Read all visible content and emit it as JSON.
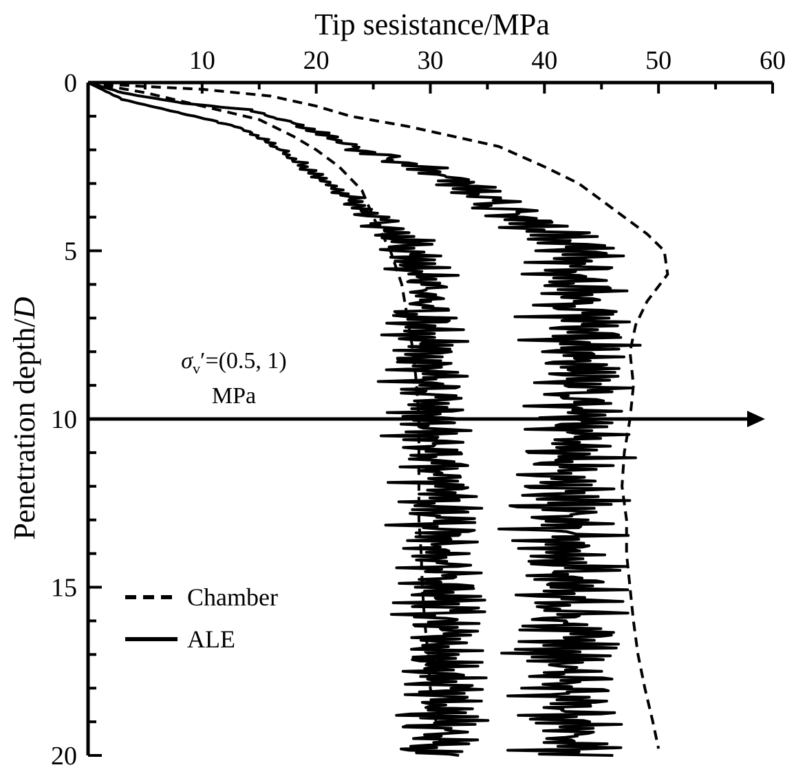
{
  "chart_data": {
    "type": "line",
    "title": "",
    "xlabel": "Tip sesistance/MPa",
    "ylabel_text": "Penetration depth/",
    "ylabel_italic": "D",
    "xlim": [
      0,
      60
    ],
    "ylim": [
      0,
      20
    ],
    "y_inverted": true,
    "x_axis_position": "top",
    "x_ticks": [
      "10",
      "20",
      "30",
      "40",
      "50",
      "60"
    ],
    "y_ticks": [
      "0",
      "5",
      "10",
      "15",
      "20"
    ],
    "annotation": {
      "sigma": "σ",
      "sub": "v",
      "rest": "′=(0.5, 1)",
      "line2": "MPa",
      "arrow_depth": 10
    },
    "legend_position": "bottom-left",
    "series": [
      {
        "name": "Chamber",
        "style": "dashed",
        "sigma": "0.5",
        "points": [
          [
            0,
            0
          ],
          [
            4,
            0.1
          ],
          [
            10,
            0.2
          ],
          [
            16,
            0.4
          ],
          [
            20,
            0.7
          ],
          [
            23,
            1.0
          ],
          [
            28,
            1.3
          ],
          [
            32,
            1.6
          ],
          [
            36,
            1.9
          ],
          [
            40,
            2.5
          ],
          [
            43,
            3.0
          ],
          [
            45,
            3.5
          ],
          [
            47,
            4.0
          ],
          [
            49,
            4.5
          ],
          [
            50.5,
            5.0
          ],
          [
            50.8,
            5.7
          ],
          [
            49,
            6.5
          ],
          [
            48,
            7.2
          ],
          [
            47.5,
            8.0
          ],
          [
            47.8,
            9.0
          ],
          [
            47.5,
            10.0
          ],
          [
            47,
            11.0
          ],
          [
            46.8,
            12.0
          ],
          [
            47.2,
            13.0
          ],
          [
            47.2,
            14.0
          ],
          [
            47.5,
            15.0
          ],
          [
            47.8,
            16.0
          ],
          [
            48.2,
            17.0
          ],
          [
            48.8,
            18.0
          ],
          [
            49.5,
            19.0
          ],
          [
            50,
            19.8
          ]
        ]
      },
      {
        "name": "",
        "style": "dashed",
        "sigma": "1",
        "points": [
          [
            0,
            0
          ],
          [
            5,
            0.3
          ],
          [
            10,
            0.7
          ],
          [
            15,
            1.1
          ],
          [
            18,
            1.6
          ],
          [
            20,
            2.0
          ],
          [
            22,
            2.5
          ],
          [
            24,
            3.2
          ],
          [
            25,
            4.0
          ],
          [
            26.5,
            5.0
          ],
          [
            27.5,
            6.0
          ],
          [
            28,
            7.0
          ],
          [
            28.5,
            8.0
          ],
          [
            28.8,
            9.0
          ],
          [
            29,
            10.0
          ],
          [
            29,
            11.0
          ],
          [
            29,
            12.0
          ],
          [
            29,
            13.0
          ],
          [
            29.2,
            14.0
          ],
          [
            29.3,
            15.0
          ],
          [
            29.5,
            16.0
          ],
          [
            29.8,
            17.0
          ],
          [
            30,
            18.0
          ],
          [
            30.5,
            19.0
          ],
          [
            31,
            19.8
          ]
        ]
      },
      {
        "name": "ALE",
        "style": "solid",
        "sigma": "0.5",
        "base": [
          [
            0,
            0
          ],
          [
            3,
            0.3
          ],
          [
            8,
            0.6
          ],
          [
            14,
            0.8
          ],
          [
            18,
            1.2
          ],
          [
            21,
            1.6
          ],
          [
            24,
            2.0
          ],
          [
            29,
            2.5
          ],
          [
            33,
            3.0
          ],
          [
            35,
            3.5
          ],
          [
            38,
            4.0
          ],
          [
            41,
            4.5
          ],
          [
            43,
            5.0
          ],
          [
            43,
            5.5
          ],
          [
            43,
            6.0
          ],
          [
            43,
            6.5
          ],
          [
            43,
            7.0
          ],
          [
            43,
            8.0
          ],
          [
            43,
            9.0
          ],
          [
            43,
            10.0
          ],
          [
            43,
            10.5
          ],
          [
            42,
            12.0
          ],
          [
            41.5,
            13.5
          ],
          [
            42,
            15.0
          ],
          [
            42,
            17.0
          ],
          [
            42,
            19.0
          ],
          [
            42,
            20.0
          ]
        ],
        "amp": [
          [
            0,
            0
          ],
          [
            0.5,
            0.2
          ],
          [
            1.0,
            0.5
          ],
          [
            2.0,
            1.5
          ],
          [
            3.0,
            2.5
          ],
          [
            4.0,
            4.0
          ],
          [
            5.0,
            4.5
          ],
          [
            10.0,
            4.8
          ],
          [
            15.0,
            5.0
          ],
          [
            20.0,
            5.0
          ]
        ]
      },
      {
        "name": "",
        "style": "solid",
        "sigma": "1",
        "base": [
          [
            0,
            0
          ],
          [
            3,
            0.5
          ],
          [
            8,
            0.9
          ],
          [
            13,
            1.3
          ],
          [
            16,
            1.8
          ],
          [
            19,
            2.5
          ],
          [
            21,
            3.0
          ],
          [
            23,
            3.5
          ],
          [
            25,
            4.0
          ],
          [
            27,
            4.5
          ],
          [
            28,
            5.0
          ],
          [
            29,
            5.5
          ],
          [
            29.5,
            6.5
          ],
          [
            29.5,
            7.5
          ],
          [
            29.5,
            8.5
          ],
          [
            30,
            9.5
          ],
          [
            30,
            10.0
          ],
          [
            30.5,
            11.0
          ],
          [
            31,
            12.0
          ],
          [
            31,
            13.5
          ],
          [
            31,
            15.0
          ],
          [
            31,
            17.0
          ],
          [
            31,
            19.0
          ],
          [
            31,
            20.0
          ]
        ],
        "amp": [
          [
            0,
            0
          ],
          [
            1.0,
            0.2
          ],
          [
            2.0,
            0.6
          ],
          [
            3.0,
            1.0
          ],
          [
            4.0,
            2.0
          ],
          [
            5.0,
            3.0
          ],
          [
            6.0,
            3.5
          ],
          [
            10.0,
            3.8
          ],
          [
            13.0,
            4.0
          ],
          [
            20.0,
            4.0
          ]
        ]
      }
    ]
  }
}
